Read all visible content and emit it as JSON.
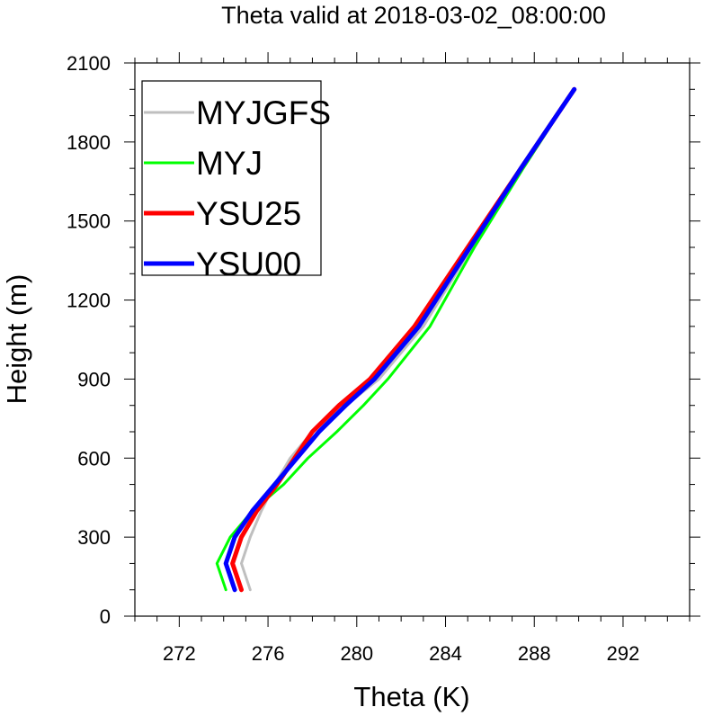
{
  "chart_data": {
    "type": "line",
    "title": "Theta valid at 2018-03-02_08:00:00",
    "xlabel": "Theta (K)",
    "ylabel": "Height (m)",
    "xlim": [
      270,
      295
    ],
    "ylim": [
      0,
      2100
    ],
    "xticks": [
      272,
      276,
      280,
      284,
      288,
      292
    ],
    "yticks": [
      0,
      300,
      600,
      900,
      1200,
      1500,
      1800,
      2100
    ],
    "xtick_labels": [
      "272",
      "276",
      "280",
      "284",
      "288",
      "292"
    ],
    "ytick_labels": [
      "0",
      "300",
      "600",
      "900",
      "1200",
      "1500",
      "1800",
      "2100"
    ],
    "grid": false,
    "legend_position": "top-left",
    "series": [
      {
        "name": "MYJGFS",
        "color": "#bfbfbf",
        "x": [
          275.2,
          274.8,
          275.2,
          275.7,
          276.3,
          277.0,
          278.0,
          279.5,
          281.0,
          283.0,
          285.2,
          287.5,
          289.8
        ],
        "y": [
          100,
          200,
          300,
          400,
          500,
          600,
          700,
          800,
          900,
          1100,
          1400,
          1700,
          2000
        ]
      },
      {
        "name": "MYJ",
        "color": "#00ff00",
        "x": [
          274.1,
          273.7,
          274.3,
          275.3,
          276.7,
          277.8,
          279.1,
          280.3,
          281.4,
          283.3,
          285.3,
          287.5,
          289.8
        ],
        "y": [
          100,
          200,
          300,
          400,
          500,
          600,
          700,
          800,
          900,
          1100,
          1400,
          1700,
          2000
        ]
      },
      {
        "name": "YSU25",
        "color": "#ff0000",
        "x": [
          274.8,
          274.4,
          274.8,
          275.5,
          276.4,
          277.2,
          278.0,
          279.2,
          280.6,
          282.6,
          285.0,
          287.4,
          289.8
        ],
        "y": [
          100,
          200,
          300,
          400,
          500,
          600,
          700,
          800,
          900,
          1100,
          1400,
          1700,
          2000
        ]
      },
      {
        "name": "YSU00",
        "color": "#0000ff",
        "x": [
          274.5,
          274.1,
          274.5,
          275.3,
          276.3,
          277.3,
          278.3,
          279.5,
          280.8,
          282.8,
          285.1,
          287.4,
          289.8
        ],
        "y": [
          100,
          200,
          300,
          400,
          500,
          600,
          700,
          800,
          900,
          1100,
          1400,
          1700,
          2000
        ]
      }
    ]
  }
}
